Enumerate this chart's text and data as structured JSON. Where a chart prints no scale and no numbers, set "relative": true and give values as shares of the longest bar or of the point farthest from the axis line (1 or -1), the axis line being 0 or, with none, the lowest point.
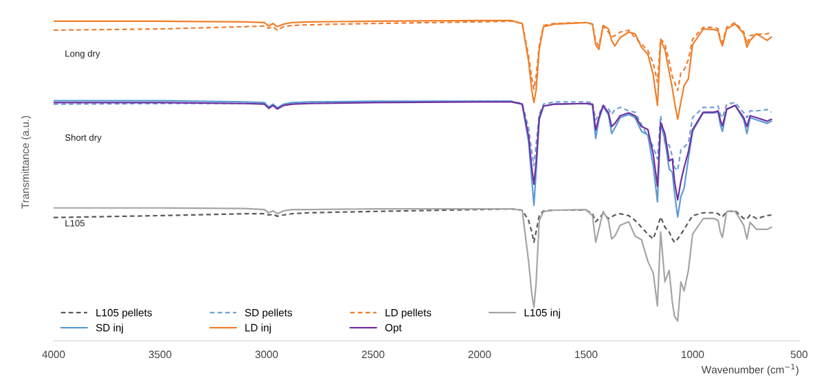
{
  "chart_data": {
    "type": "line",
    "relative": true,
    "xlabel": "Wavenumber (cm$^{−1}$)",
    "ylabel": "Transmittance (a.u.)",
    "annotations": [
      "Long dry",
      "Short dry",
      "L105"
    ],
    "xlim": [
      4000,
      500
    ],
    "xticks": [
      4000,
      3500,
      3000,
      2500,
      2000,
      1500,
      1000,
      500
    ],
    "grid": false,
    "legend": "bottom left",
    "marker": "none",
    "x": [
      4000,
      3500,
      3100,
      3010,
      2990,
      2970,
      2950,
      2920,
      2880,
      2800,
      2500,
      2000,
      1850,
      1800,
      1770,
      1755,
      1745,
      1735,
      1720,
      1700,
      1650,
      1500,
      1470,
      1455,
      1440,
      1420,
      1395,
      1380,
      1365,
      1340,
      1300,
      1270,
      1240,
      1210,
      1185,
      1165,
      1150,
      1130,
      1110,
      1095,
      1085,
      1070,
      1055,
      1040,
      1020,
      1000,
      950,
      900,
      880,
      870,
      860,
      840,
      800,
      760,
      745,
      730,
      700,
      650,
      630
    ],
    "series": [
      {
        "name": "L105 pellets",
        "color": "#595959",
        "line_style": "dashed",
        "values": [
          0.385,
          0.391,
          0.397,
          0.397,
          0.393,
          0.395,
          0.389,
          0.393,
          0.397,
          0.4,
          0.404,
          0.41,
          0.412,
          0.408,
          0.376,
          0.34,
          0.308,
          0.34,
          0.391,
          0.406,
          0.408,
          0.408,
          0.397,
          0.372,
          0.382,
          0.397,
          0.382,
          0.387,
          0.393,
          0.397,
          0.391,
          0.376,
          0.355,
          0.333,
          0.318,
          0.355,
          0.387,
          0.355,
          0.34,
          0.318,
          0.308,
          0.318,
          0.333,
          0.348,
          0.37,
          0.391,
          0.4,
          0.4,
          0.397,
          0.391,
          0.387,
          0.404,
          0.406,
          0.382,
          0.38,
          0.393,
          0.382,
          0.391,
          0.393
        ]
      },
      {
        "name": "SD pellets",
        "color": "#6f9fd8",
        "line_style": "dashed",
        "values": [
          0.739,
          0.741,
          0.741,
          0.741,
          0.73,
          0.737,
          0.728,
          0.737,
          0.741,
          0.744,
          0.746,
          0.748,
          0.748,
          0.741,
          0.665,
          0.59,
          0.547,
          0.611,
          0.707,
          0.739,
          0.746,
          0.746,
          0.744,
          0.69,
          0.707,
          0.735,
          0.724,
          0.707,
          0.722,
          0.729,
          0.718,
          0.714,
          0.675,
          0.639,
          0.605,
          0.568,
          0.703,
          0.618,
          0.611,
          0.575,
          0.541,
          0.532,
          0.596,
          0.605,
          0.618,
          0.697,
          0.729,
          0.729,
          0.733,
          0.707,
          0.697,
          0.739,
          0.744,
          0.712,
          0.697,
          0.718,
          0.718,
          0.722,
          0.714
        ]
      },
      {
        "name": "LD pellets",
        "color": "#ed7d31",
        "line_style": "dashed",
        "values": [
          0.97,
          0.974,
          0.981,
          0.983,
          0.976,
          0.981,
          0.97,
          0.981,
          0.985,
          0.987,
          0.991,
          0.996,
          0.998,
          0.991,
          0.889,
          0.821,
          0.786,
          0.825,
          0.921,
          0.985,
          0.991,
          0.994,
          0.989,
          0.936,
          0.921,
          0.983,
          0.964,
          0.949,
          0.953,
          0.964,
          0.97,
          0.947,
          0.927,
          0.906,
          0.868,
          0.808,
          0.942,
          0.927,
          0.872,
          0.825,
          0.808,
          0.782,
          0.837,
          0.846,
          0.878,
          0.942,
          0.979,
          0.979,
          0.974,
          0.942,
          0.932,
          0.979,
          0.994,
          0.964,
          0.927,
          0.953,
          0.957,
          0.959,
          0.962
        ]
      },
      {
        "name": "L105 inj",
        "color": "#a5a5a5",
        "line_style": "solid",
        "values": [
          0.415,
          0.415,
          0.413,
          0.41,
          0.4,
          0.406,
          0.397,
          0.406,
          0.41,
          0.41,
          0.412,
          0.412,
          0.412,
          0.408,
          0.248,
          0.147,
          0.105,
          0.177,
          0.376,
          0.404,
          0.408,
          0.41,
          0.391,
          0.308,
          0.348,
          0.404,
          0.376,
          0.318,
          0.327,
          0.361,
          0.372,
          0.327,
          0.316,
          0.248,
          0.212,
          0.109,
          0.34,
          0.184,
          0.22,
          0.12,
          0.077,
          0.062,
          0.184,
          0.156,
          0.22,
          0.333,
          0.382,
          0.382,
          0.376,
          0.34,
          0.323,
          0.404,
          0.404,
          0.361,
          0.318,
          0.37,
          0.348,
          0.348,
          0.355
        ]
      },
      {
        "name": "SD inj",
        "color": "#5b9bd5",
        "line_style": "solid",
        "values": [
          0.75,
          0.75,
          0.746,
          0.744,
          0.73,
          0.739,
          0.728,
          0.739,
          0.744,
          0.746,
          0.748,
          0.748,
          0.748,
          0.739,
          0.622,
          0.504,
          0.423,
          0.526,
          0.69,
          0.733,
          0.739,
          0.741,
          0.737,
          0.632,
          0.69,
          0.733,
          0.705,
          0.647,
          0.665,
          0.697,
          0.707,
          0.697,
          0.654,
          0.643,
          0.547,
          0.434,
          0.679,
          0.628,
          0.536,
          0.526,
          0.462,
          0.387,
          0.451,
          0.476,
          0.568,
          0.654,
          0.712,
          0.712,
          0.714,
          0.675,
          0.654,
          0.722,
          0.735,
          0.69,
          0.647,
          0.697,
          0.69,
          0.679,
          0.686
        ]
      },
      {
        "name": "LD inj",
        "color": "#f07f2a",
        "line_style": "solid",
        "values": [
          0.998,
          0.998,
          0.996,
          0.994,
          0.983,
          0.991,
          0.981,
          0.989,
          0.994,
          0.996,
          0.998,
          1.0,
          1.0,
          0.991,
          0.874,
          0.782,
          0.744,
          0.782,
          0.91,
          0.981,
          0.989,
          0.994,
          0.989,
          0.925,
          0.91,
          0.985,
          0.974,
          0.938,
          0.921,
          0.947,
          0.964,
          0.959,
          0.917,
          0.895,
          0.831,
          0.735,
          0.938,
          0.91,
          0.84,
          0.788,
          0.746,
          0.692,
          0.746,
          0.797,
          0.818,
          0.925,
          0.974,
          0.972,
          0.968,
          0.938,
          0.921,
          0.974,
          0.989,
          0.959,
          0.917,
          0.938,
          0.959,
          0.938,
          0.949
        ]
      },
      {
        "name": "Opt",
        "color": "#7030a0",
        "line_style": "solid",
        "values": [
          0.744,
          0.744,
          0.741,
          0.739,
          0.726,
          0.735,
          0.724,
          0.735,
          0.739,
          0.741,
          0.744,
          0.746,
          0.746,
          0.739,
          0.639,
          0.541,
          0.489,
          0.553,
          0.697,
          0.733,
          0.739,
          0.741,
          0.739,
          0.658,
          0.697,
          0.735,
          0.712,
          0.669,
          0.679,
          0.703,
          0.712,
          0.703,
          0.669,
          0.66,
          0.583,
          0.483,
          0.682,
          0.647,
          0.562,
          0.568,
          0.498,
          0.44,
          0.498,
          0.541,
          0.59,
          0.66,
          0.714,
          0.714,
          0.718,
          0.69,
          0.671,
          0.724,
          0.735,
          0.697,
          0.669,
          0.703,
          0.697,
          0.686,
          0.692
        ]
      }
    ]
  }
}
